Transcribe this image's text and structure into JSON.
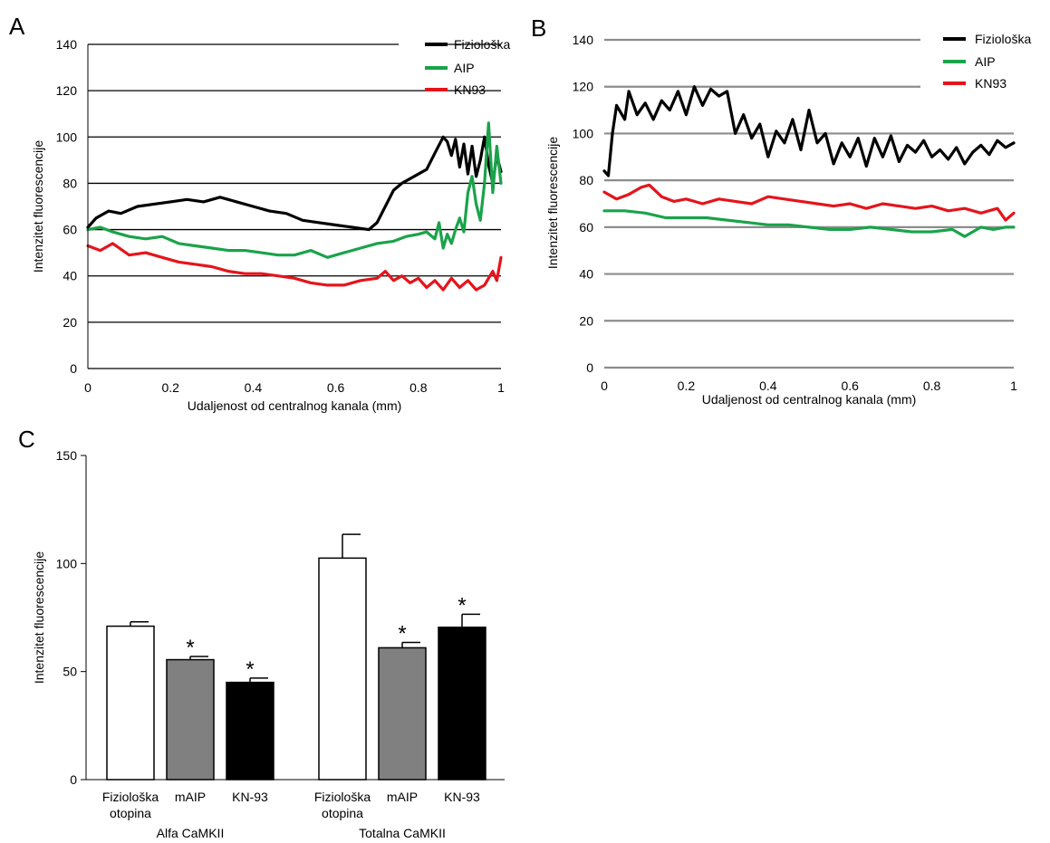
{
  "panels": [
    {
      "id": "A",
      "letter": "A"
    },
    {
      "id": "B",
      "letter": "B"
    },
    {
      "id": "C",
      "letter": "C"
    }
  ],
  "chart_data": [
    {
      "panel": "A",
      "type": "line",
      "xlabel": "Udaljenost od centralnog kanala (mm)",
      "ylabel": "Intenzitet fluorescencije",
      "xlim": [
        0,
        1
      ],
      "ylim": [
        0,
        140
      ],
      "xticks": [
        0,
        0.2,
        0.4,
        0.6,
        0.8,
        1
      ],
      "xtick_labels": [
        "0",
        "0.2",
        "0.4",
        "0.6",
        "0.8",
        "1"
      ],
      "yticks": [
        0,
        20,
        40,
        60,
        80,
        100,
        120,
        140
      ],
      "ytick_labels": [
        "0",
        "20",
        "40",
        "60",
        "80",
        "100",
        "120",
        "140"
      ],
      "grid": "horizontal",
      "grid_color": "#000000",
      "legend_position": "top-right",
      "series": [
        {
          "name": "Fiziološka",
          "color": "#000000",
          "x": [
            0,
            0.02,
            0.05,
            0.08,
            0.12,
            0.16,
            0.2,
            0.24,
            0.28,
            0.32,
            0.36,
            0.4,
            0.44,
            0.48,
            0.52,
            0.56,
            0.6,
            0.64,
            0.68,
            0.7,
            0.72,
            0.74,
            0.76,
            0.78,
            0.8,
            0.82,
            0.84,
            0.86,
            0.87,
            0.88,
            0.89,
            0.9,
            0.91,
            0.92,
            0.93,
            0.94,
            0.95,
            0.96,
            0.97,
            0.98,
            0.99,
            1.0
          ],
          "y": [
            61,
            65,
            68,
            67,
            70,
            71,
            72,
            73,
            72,
            74,
            72,
            70,
            68,
            67,
            64,
            63,
            62,
            61,
            60,
            63,
            70,
            77,
            80,
            82,
            84,
            86,
            93,
            100,
            98,
            92,
            99,
            87,
            97,
            84,
            96,
            83,
            90,
            100,
            88,
            80,
            92,
            85
          ]
        },
        {
          "name": "AIP",
          "color": "#1aa34a",
          "x": [
            0,
            0.03,
            0.06,
            0.1,
            0.14,
            0.18,
            0.22,
            0.26,
            0.3,
            0.34,
            0.38,
            0.42,
            0.46,
            0.5,
            0.54,
            0.58,
            0.62,
            0.66,
            0.7,
            0.74,
            0.77,
            0.8,
            0.82,
            0.84,
            0.85,
            0.86,
            0.87,
            0.88,
            0.89,
            0.9,
            0.91,
            0.92,
            0.93,
            0.94,
            0.95,
            0.96,
            0.97,
            0.98,
            0.99,
            1.0
          ],
          "y": [
            60,
            61,
            59,
            57,
            56,
            57,
            54,
            53,
            52,
            51,
            51,
            50,
            49,
            49,
            51,
            48,
            50,
            52,
            54,
            55,
            57,
            58,
            59,
            56,
            63,
            52,
            58,
            54,
            60,
            65,
            59,
            76,
            83,
            71,
            64,
            80,
            106,
            76,
            96,
            80
          ]
        },
        {
          "name": "KN93",
          "color": "#e5141b",
          "x": [
            0,
            0.03,
            0.06,
            0.1,
            0.14,
            0.18,
            0.22,
            0.26,
            0.3,
            0.34,
            0.38,
            0.42,
            0.46,
            0.5,
            0.54,
            0.58,
            0.62,
            0.66,
            0.7,
            0.72,
            0.74,
            0.76,
            0.78,
            0.8,
            0.82,
            0.84,
            0.86,
            0.88,
            0.9,
            0.92,
            0.94,
            0.96,
            0.98,
            0.99,
            1.0
          ],
          "y": [
            53,
            51,
            54,
            49,
            50,
            48,
            46,
            45,
            44,
            42,
            41,
            41,
            40,
            39,
            37,
            36,
            36,
            38,
            39,
            42,
            38,
            40,
            37,
            39,
            35,
            38,
            34,
            39,
            35,
            38,
            34,
            36,
            42,
            38,
            48
          ]
        }
      ]
    },
    {
      "panel": "B",
      "type": "line",
      "xlabel": "Udaljenost od centralnog kanala (mm)",
      "ylabel": "Intenzitet fluorescencije",
      "xlim": [
        0,
        1
      ],
      "ylim": [
        0,
        140
      ],
      "xticks": [
        0,
        0.2,
        0.4,
        0.6,
        0.8,
        1
      ],
      "xtick_labels": [
        "0",
        "0.2",
        "0.4",
        "0.6",
        "0.8",
        "1"
      ],
      "yticks": [
        0,
        20,
        40,
        60,
        80,
        100,
        120,
        140
      ],
      "ytick_labels": [
        "0",
        "20",
        "40",
        "60",
        "80",
        "100",
        "120",
        "140"
      ],
      "grid": "horizontal",
      "grid_color": "#8c8c8c",
      "legend_position": "top-right",
      "series": [
        {
          "name": "Fiziološka",
          "color": "#000000",
          "x": [
            0,
            0.01,
            0.02,
            0.03,
            0.05,
            0.06,
            0.08,
            0.1,
            0.12,
            0.14,
            0.16,
            0.18,
            0.2,
            0.22,
            0.24,
            0.26,
            0.28,
            0.3,
            0.32,
            0.34,
            0.36,
            0.38,
            0.4,
            0.42,
            0.44,
            0.46,
            0.48,
            0.5,
            0.52,
            0.54,
            0.56,
            0.58,
            0.6,
            0.62,
            0.64,
            0.66,
            0.68,
            0.7,
            0.72,
            0.74,
            0.76,
            0.78,
            0.8,
            0.82,
            0.84,
            0.86,
            0.88,
            0.9,
            0.92,
            0.94,
            0.96,
            0.98,
            1.0
          ],
          "y": [
            84,
            82,
            100,
            112,
            106,
            118,
            108,
            113,
            106,
            114,
            110,
            118,
            108,
            120,
            112,
            119,
            116,
            118,
            100,
            108,
            98,
            104,
            90,
            101,
            96,
            106,
            93,
            110,
            96,
            100,
            87,
            96,
            90,
            98,
            86,
            98,
            90,
            99,
            88,
            95,
            92,
            97,
            90,
            93,
            89,
            94,
            87,
            92,
            95,
            91,
            97,
            94,
            96
          ]
        },
        {
          "name": "AIP",
          "color": "#1aa34a",
          "x": [
            0,
            0.05,
            0.1,
            0.15,
            0.2,
            0.25,
            0.3,
            0.35,
            0.4,
            0.45,
            0.5,
            0.55,
            0.6,
            0.65,
            0.7,
            0.75,
            0.8,
            0.85,
            0.88,
            0.9,
            0.92,
            0.95,
            0.98,
            1.0
          ],
          "y": [
            67,
            67,
            66,
            64,
            64,
            64,
            63,
            62,
            61,
            61,
            60,
            59,
            59,
            60,
            59,
            58,
            58,
            59,
            56,
            58,
            60,
            59,
            60,
            60
          ]
        },
        {
          "name": "KN93",
          "color": "#e5141b",
          "x": [
            0,
            0.03,
            0.06,
            0.09,
            0.11,
            0.14,
            0.17,
            0.2,
            0.24,
            0.28,
            0.32,
            0.36,
            0.4,
            0.44,
            0.48,
            0.52,
            0.56,
            0.6,
            0.64,
            0.68,
            0.72,
            0.76,
            0.8,
            0.84,
            0.88,
            0.92,
            0.96,
            0.98,
            1.0
          ],
          "y": [
            75,
            72,
            74,
            77,
            78,
            73,
            71,
            72,
            70,
            72,
            71,
            70,
            73,
            72,
            71,
            70,
            69,
            70,
            68,
            70,
            69,
            68,
            69,
            67,
            68,
            66,
            68,
            63,
            66
          ]
        }
      ]
    },
    {
      "panel": "C",
      "type": "bar",
      "ylabel": "Intenzitet fluorescencije",
      "xlabel": "",
      "ylim": [
        0,
        150
      ],
      "yticks": [
        0,
        50,
        100,
        150
      ],
      "ytick_labels": [
        "0",
        "50",
        "100",
        "150"
      ],
      "grid": "none",
      "groups": [
        {
          "name": "Alfa CaMKII",
          "bars": [
            {
              "label": [
                "Fiziološka",
                "otopina"
              ],
              "value": 71,
              "error": 2,
              "fill": "#ffffff",
              "significant": false
            },
            {
              "label": [
                "mAIP"
              ],
              "value": 55.5,
              "error": 1.5,
              "fill": "#808080",
              "significant": true
            },
            {
              "label": [
                "KN-93"
              ],
              "value": 45,
              "error": 2,
              "fill": "#000000",
              "significant": true
            }
          ]
        },
        {
          "name": "Totalna CaMKII",
          "bars": [
            {
              "label": [
                "Fiziološka",
                "otopina"
              ],
              "value": 102.5,
              "error": 11,
              "fill": "#ffffff",
              "significant": false
            },
            {
              "label": [
                "mAIP"
              ],
              "value": 61,
              "error": 2.5,
              "fill": "#808080",
              "significant": true
            },
            {
              "label": [
                "KN-93"
              ],
              "value": 70.5,
              "error": 6,
              "fill": "#000000",
              "significant": true
            }
          ]
        }
      ],
      "significance_marker": "*"
    }
  ]
}
